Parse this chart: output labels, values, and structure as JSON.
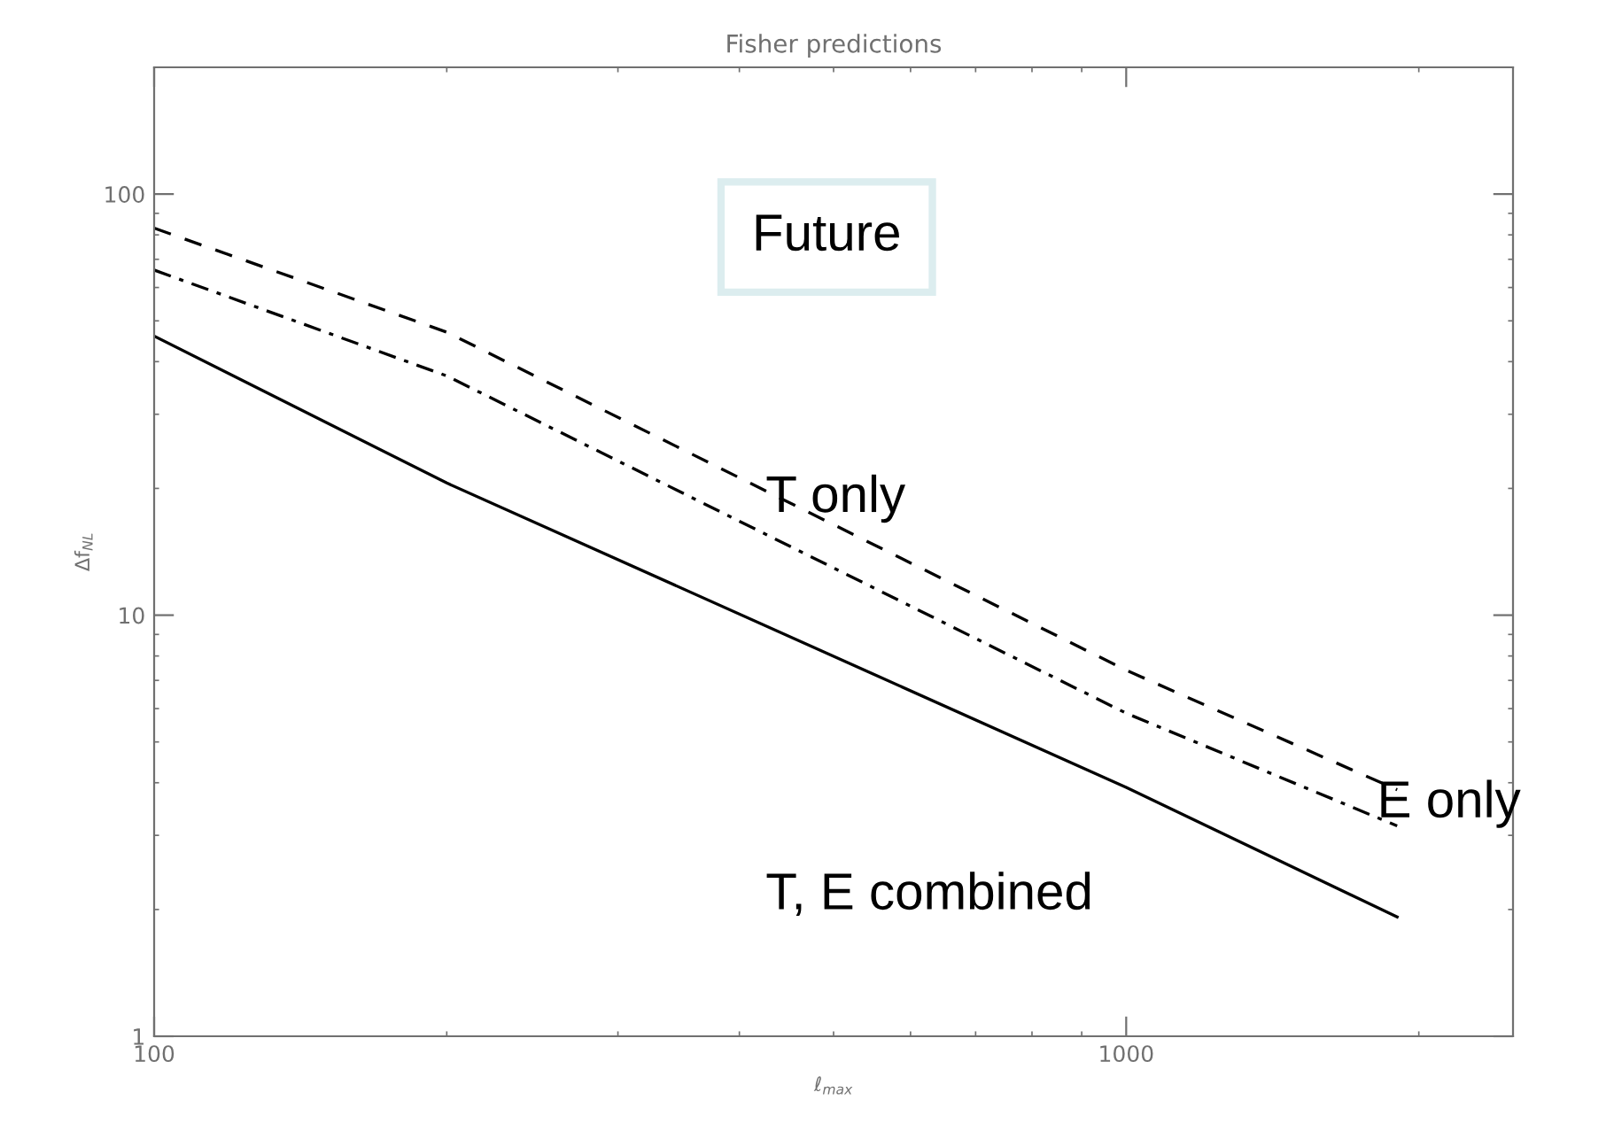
{
  "chart_data": {
    "type": "line",
    "title": "Fisher predictions",
    "xlabel": "ℓ$_{max}$",
    "ylabel": "Δf$_{NL}$",
    "log": "xy",
    "xlim": [
      100,
      2500
    ],
    "ylim": [
      1,
      200
    ],
    "xticks": [
      100,
      1000
    ],
    "yticks": [
      1,
      10,
      100
    ],
    "grid": false,
    "legend": false,
    "marker": "none",
    "series": [
      {
        "color": "#000000",
        "line_style": "dashed",
        "x": [
          100,
          200,
          1000,
          1900
        ],
        "values": [
          83,
          47,
          7.4,
          3.85
        ]
      },
      {
        "color": "#000000",
        "line_style": "dashdot",
        "x": [
          100,
          200,
          1000,
          1900
        ],
        "values": [
          66,
          37,
          5.85,
          3.16
        ]
      },
      {
        "color": "#000000",
        "line_style": "solid",
        "x": [
          100,
          200,
          1000,
          1900
        ],
        "values": [
          46,
          20.6,
          3.9,
          1.92
        ]
      }
    ],
    "annotations": [
      "Future",
      "T only",
      "E only",
      "T, E combined"
    ]
  }
}
